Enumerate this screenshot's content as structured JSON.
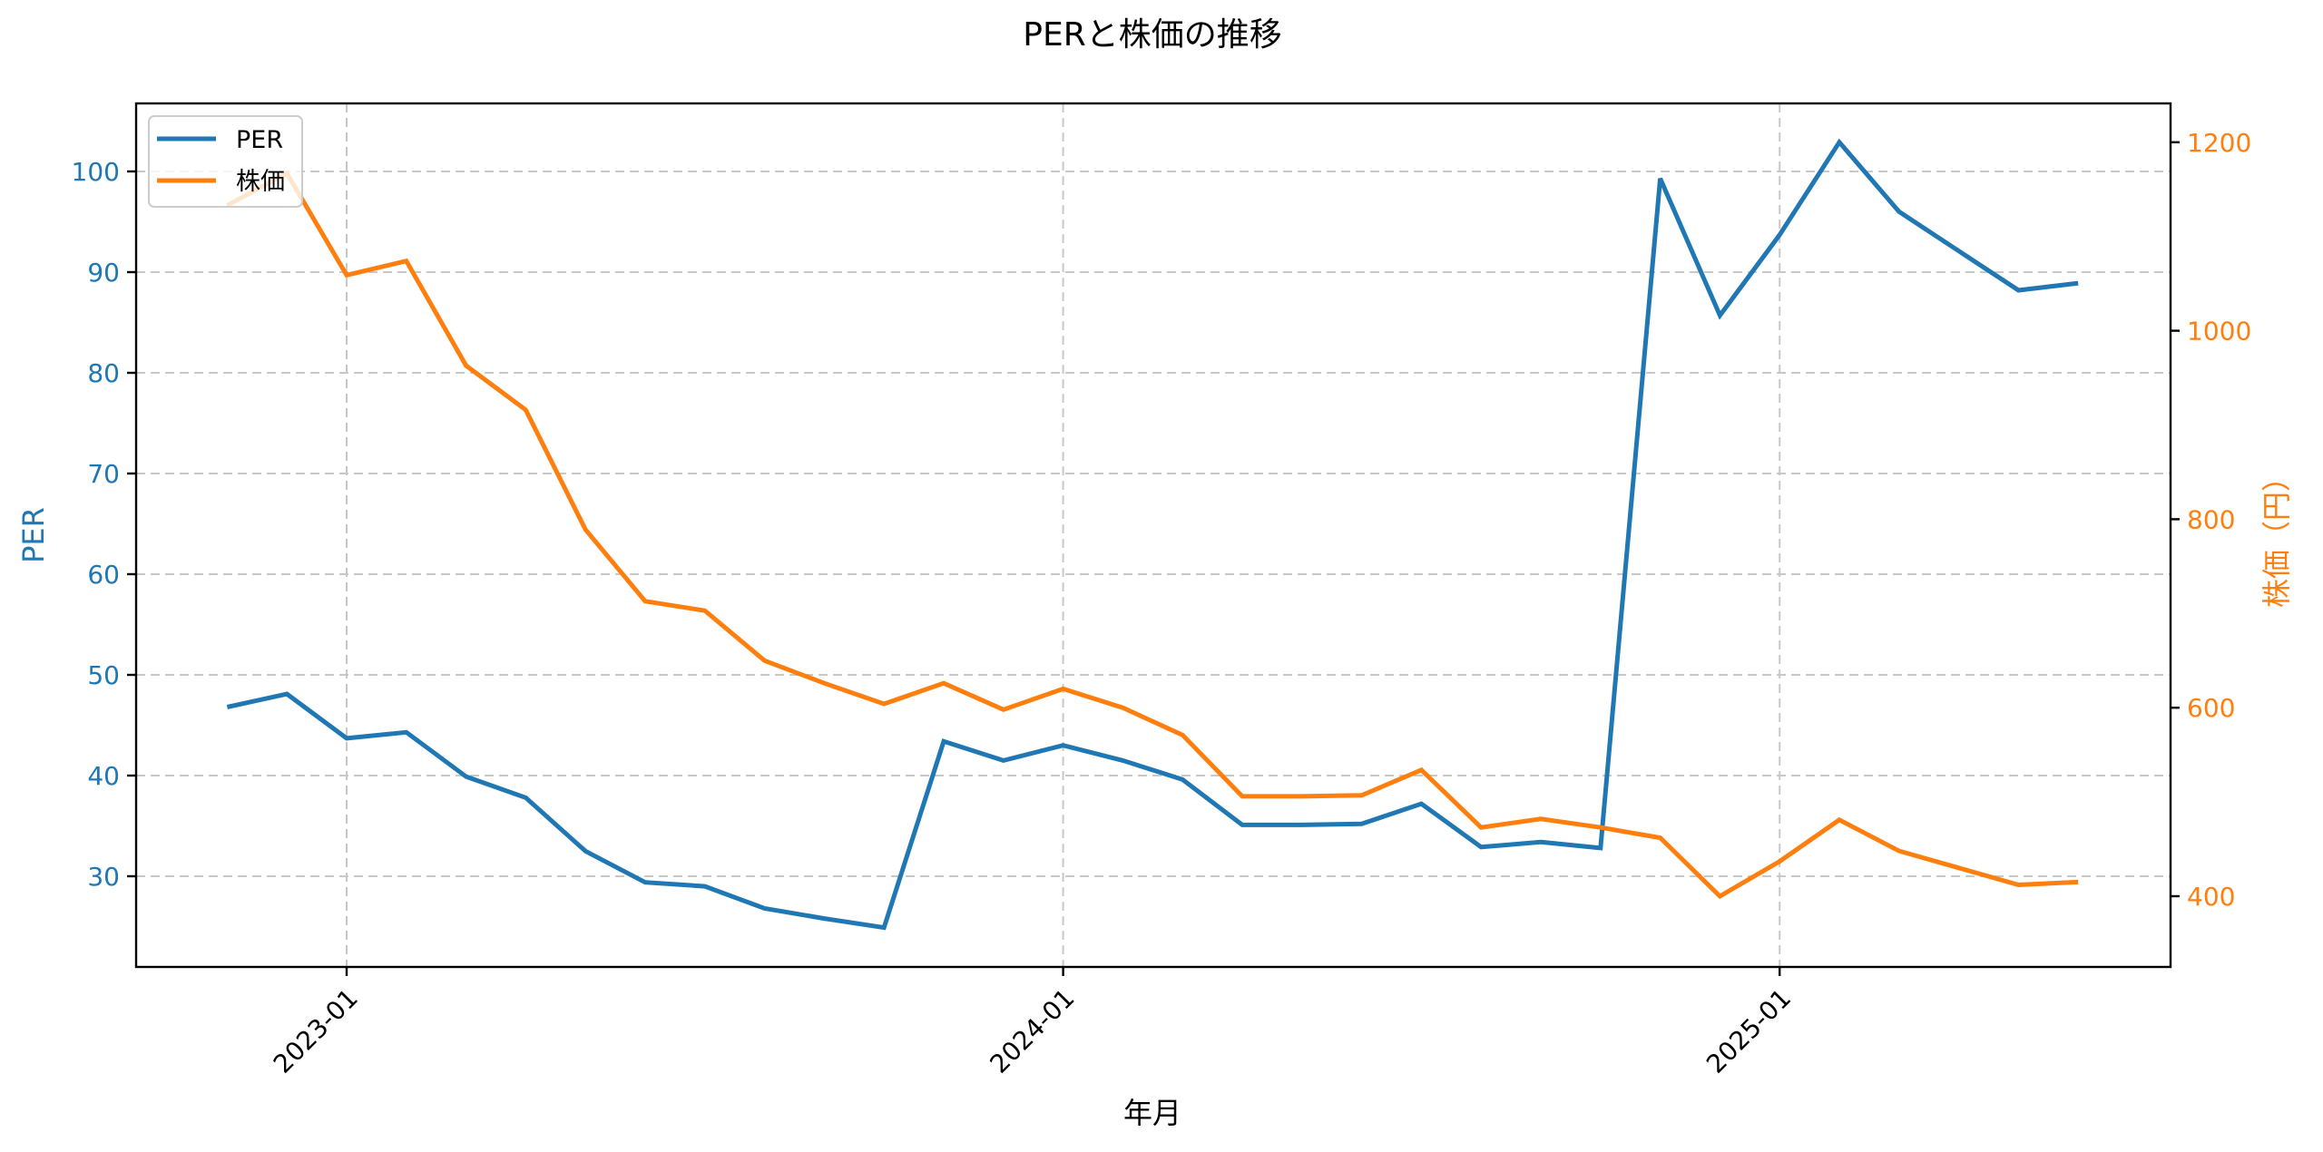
{
  "chart_data": {
    "type": "line",
    "title": "PERと株価の推移",
    "xlabel": "年月",
    "ylabel": "PER",
    "ylabel_right": "株価（円）",
    "x_ticks": [
      "2023-01",
      "2024-01",
      "2025-01"
    ],
    "y_ticks_left": [
      30,
      40,
      50,
      60,
      70,
      80,
      90,
      100
    ],
    "y_ticks_right": [
      400,
      600,
      800,
      1000,
      1200
    ],
    "ylim_left": [
      21,
      107
    ],
    "ylim_right": [
      330,
      1240
    ],
    "grid": true,
    "legend_position": "upper left",
    "x": [
      "2022-11",
      "2022-12",
      "2023-01",
      "2023-02",
      "2023-03",
      "2023-04",
      "2023-05",
      "2023-06",
      "2023-07",
      "2023-08",
      "2023-09",
      "2023-10",
      "2023-11",
      "2023-12",
      "2024-01",
      "2024-02",
      "2024-03",
      "2024-04",
      "2024-05",
      "2024-06",
      "2024-07",
      "2024-08",
      "2024-09",
      "2024-10",
      "2024-11",
      "2024-12",
      "2025-01",
      "2025-02",
      "2025-03",
      "2025-04",
      "2025-05",
      "2025-06"
    ],
    "series": [
      {
        "name": "PER",
        "axis": "left",
        "color": "#1f77b4",
        "values": [
          46.8,
          48.1,
          43.7,
          44.3,
          39.9,
          37.8,
          32.5,
          29.4,
          29.0,
          26.8,
          25.8,
          24.9,
          43.4,
          41.5,
          43.0,
          41.5,
          39.6,
          35.1,
          35.1,
          35.2,
          37.2,
          32.9,
          33.4,
          32.8,
          99.3,
          85.7,
          93.7,
          102.9,
          96.0,
          92.1,
          88.2,
          88.9
        ]
      },
      {
        "name": "株価",
        "axis": "right",
        "color": "#ff7f0e",
        "values": [
          1133,
          1167,
          1059,
          1074,
          963,
          916,
          789,
          713,
          703,
          650,
          626,
          604,
          626,
          598,
          620,
          600,
          571,
          506,
          506,
          507,
          534,
          473,
          482,
          473,
          462,
          400,
          437,
          481,
          448,
          430,
          412,
          415
        ]
      }
    ]
  }
}
